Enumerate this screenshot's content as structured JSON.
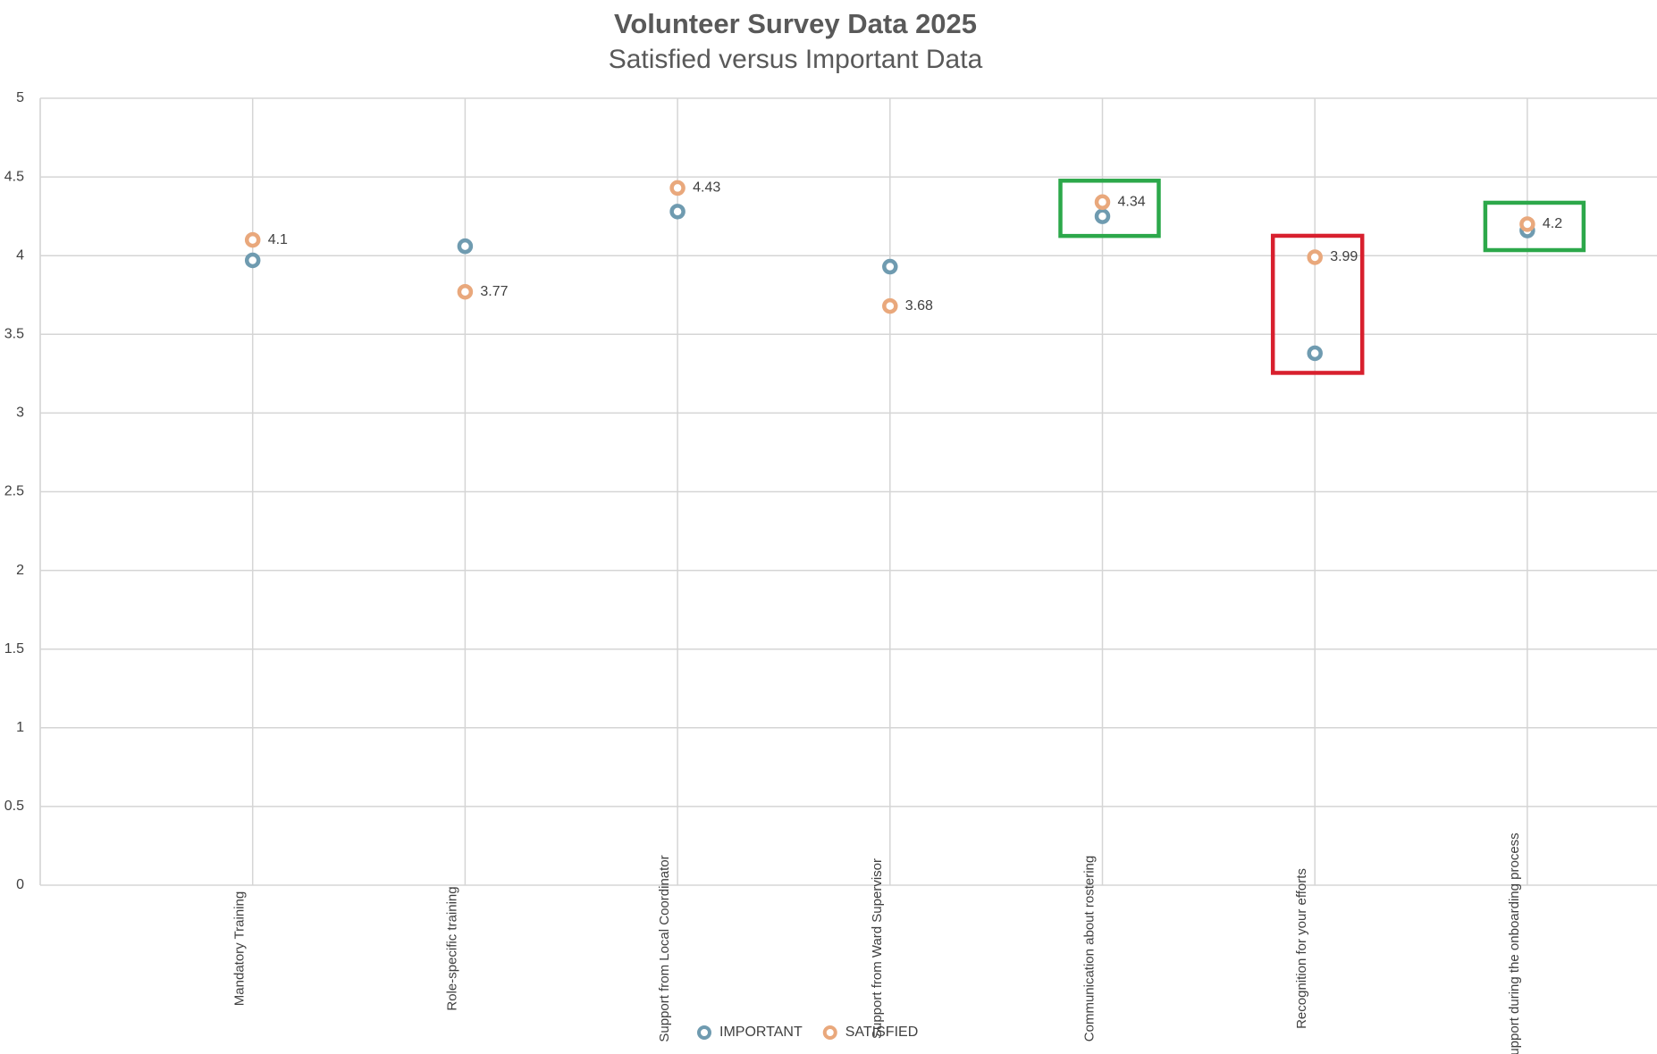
{
  "chart_data": {
    "type": "dot",
    "title": "Volunteer Survey Data 2025",
    "subtitle": "Satisfied versus Important Data",
    "categories": [
      "Mandatory Training",
      "Role-specific training",
      "Support from Local Coordinator",
      "Support from Ward Supervisor",
      "Communication about rostering",
      "Recognition for your efforts",
      "Support during the onboarding process"
    ],
    "series": [
      {
        "name": "IMPORTANT",
        "color": "#6f9bb0",
        "values": [
          3.97,
          4.06,
          4.28,
          3.93,
          4.25,
          3.38,
          4.16
        ],
        "data_labels": false
      },
      {
        "name": "SATISFIED",
        "color": "#e9a87c",
        "values": [
          4.1,
          3.77,
          4.43,
          3.68,
          4.34,
          3.99,
          4.2
        ],
        "data_labels": true
      }
    ],
    "ylim": [
      0,
      5
    ],
    "yticks": [
      0,
      0.5,
      1,
      1.5,
      2,
      2.5,
      3,
      3.5,
      4,
      4.5,
      5
    ],
    "grid": true,
    "legend": "bottom",
    "highlights": [
      {
        "category": "Communication about rostering",
        "color": "#2ca84a"
      },
      {
        "category": "Recognition for your efforts",
        "color": "#d8202e"
      },
      {
        "category": "Support during the onboarding process",
        "color": "#2ca84a"
      }
    ]
  }
}
